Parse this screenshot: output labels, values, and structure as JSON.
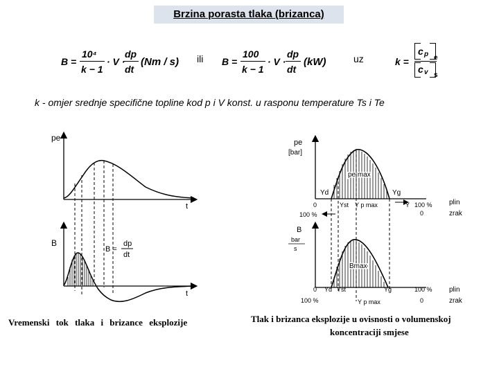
{
  "title": "Brzina porasta tlaka (brizanca)",
  "formula1": {
    "lhs": "B =",
    "num": "10⁴",
    "den": "k − 1",
    "mid": "· V ·",
    "dp": "dp",
    "dt": "dt",
    "unit": "(Nm / s)"
  },
  "connector_ili": "ili",
  "formula2": {
    "lhs": "B =",
    "num": "100",
    "den": "k − 1",
    "mid": "· V ·",
    "dp": "dp",
    "dt": "dt",
    "unit": "(kW)"
  },
  "connector_uz": "uz",
  "formula3": {
    "lhs": "k =",
    "num": "c",
    "num_sub": "p",
    "den": "c",
    "den_sub": "v",
    "bound_top": "e",
    "bound_bottom": "s"
  },
  "caption": "k - omjer srednje specifične topline kod p i V konst. u rasponu temperature Ts i Te",
  "left_diagram": {
    "top_ylabel": "pe",
    "top_xlabel": "t",
    "bottom_ylabel": "B",
    "bottom_xlabel": "t",
    "formula_lhs": "B =",
    "formula_num": "dp",
    "formula_den": "dt",
    "caption": "Vremenski tok tlaka i brizance eksplozije"
  },
  "right_diagram": {
    "top_ylabel": "pe",
    "top_unit": "[bar]",
    "peak_label": "pe max",
    "yd": "Yd",
    "yst": "Yst",
    "ypmax": "Y p max",
    "yg": "Yg",
    "y": "Y",
    "zero": "0",
    "hundred": "100 %",
    "plin": "plin",
    "zrak": "zrak",
    "bottom_ylabel": "B",
    "bottom_unit_num": "bar",
    "bottom_unit_den": "s",
    "bmax": "Bmax",
    "caption_line1": "Tlak i brizanca eksplozije u ovisnosti o volumenskoj",
    "caption_line2": "koncentraciji smjese"
  }
}
